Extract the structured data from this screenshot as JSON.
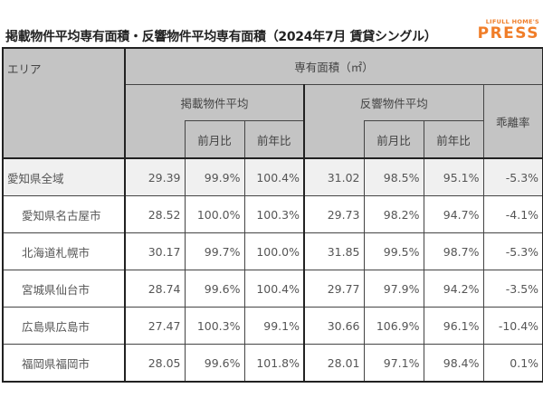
{
  "header": {
    "title": "掲載物件平均専有面積・反響物件平均専有面積（2024年7月 賃貸シングル）",
    "logo_small": "LIFULL HOME'S",
    "logo_big": "PRESS",
    "logo_color": "#f07d28"
  },
  "table": {
    "area_header": "エリア",
    "group_header": "専有面積（㎡）",
    "listed_header": "掲載物件平均",
    "response_header": "反響物件平均",
    "divergence_header": "乖離率",
    "mom_label": "前月比",
    "yoy_label": "前年比",
    "rows": [
      {
        "area": "愛知県全域",
        "listed": "29.39",
        "listed_mom": "99.9%",
        "listed_yoy": "100.4%",
        "resp": "31.02",
        "resp_mom": "98.5%",
        "resp_yoy": "95.1%",
        "div": "-5.3%"
      },
      {
        "area": "愛知県名古屋市",
        "listed": "28.52",
        "listed_mom": "100.0%",
        "listed_yoy": "100.3%",
        "resp": "29.73",
        "resp_mom": "98.2%",
        "resp_yoy": "94.7%",
        "div": "-4.1%"
      },
      {
        "area": "北海道札幌市",
        "listed": "30.17",
        "listed_mom": "99.7%",
        "listed_yoy": "100.0%",
        "resp": "31.85",
        "resp_mom": "99.5%",
        "resp_yoy": "98.7%",
        "div": "-5.3%"
      },
      {
        "area": "宮城県仙台市",
        "listed": "28.74",
        "listed_mom": "99.6%",
        "listed_yoy": "100.4%",
        "resp": "29.77",
        "resp_mom": "97.9%",
        "resp_yoy": "94.2%",
        "div": "-3.5%"
      },
      {
        "area": "広島県広島市",
        "listed": "27.47",
        "listed_mom": "100.3%",
        "listed_yoy": "99.1%",
        "resp": "30.66",
        "resp_mom": "106.9%",
        "resp_yoy": "96.1%",
        "div": "-10.4%"
      },
      {
        "area": "福岡県福岡市",
        "listed": "28.05",
        "listed_mom": "99.6%",
        "listed_yoy": "101.8%",
        "resp": "28.01",
        "resp_mom": "97.1%",
        "resp_yoy": "98.4%",
        "div": "0.1%"
      }
    ]
  }
}
